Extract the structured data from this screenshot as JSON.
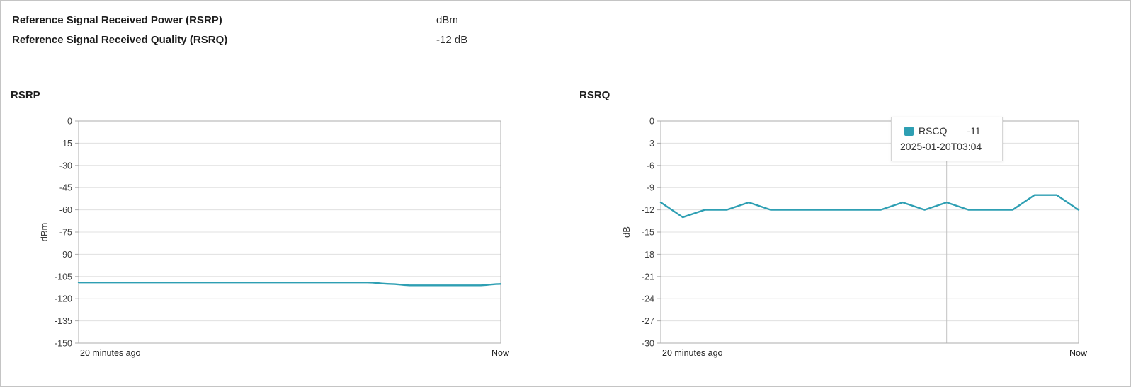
{
  "info": {
    "rows": [
      {
        "label": "Reference Signal Received Power (RSRP)",
        "value": "dBm"
      },
      {
        "label": "Reference Signal Received Quality (RSRQ)",
        "value": "-12 dB"
      }
    ]
  },
  "colors": {
    "line": "#2e9fb3",
    "grid": "#e0e0e0",
    "plot_border": "#aeaeae",
    "axis_pointer": "#c2c2c2",
    "tick_text": "#3c3c3c",
    "x_label_text": "#222222"
  },
  "chart_data": [
    {
      "type": "line",
      "title": "RSRP",
      "ylabel": "dBm",
      "xlabel": "",
      "x_axis_labels": [
        "20 minutes ago",
        "Now"
      ],
      "ylim": [
        -150,
        0
      ],
      "ytick_step": 15,
      "grid": true,
      "smooth": true,
      "values": [
        -109,
        -109,
        -109,
        -109,
        -109,
        -109,
        -109,
        -109,
        -109,
        -109,
        -109,
        -109,
        -109,
        -109,
        -110,
        -111,
        -111,
        -111,
        -111,
        -110
      ]
    },
    {
      "type": "line",
      "title": "RSRQ",
      "ylabel": "dB",
      "xlabel": "",
      "x_axis_labels": [
        "20 minutes ago",
        "Now"
      ],
      "ylim": [
        -30,
        0
      ],
      "ytick_step": 3,
      "grid": true,
      "smooth": false,
      "values": [
        -11,
        -13,
        -12,
        -12,
        -11,
        -12,
        -12,
        -12,
        -12,
        -12,
        -12,
        -11,
        -12,
        -11,
        -12,
        -12,
        -12,
        -10,
        -10,
        -12
      ],
      "tooltip": {
        "series_name": "RSCQ",
        "value": "-11",
        "timestamp": "2025-01-20T03:04",
        "point_index": 13
      }
    }
  ]
}
